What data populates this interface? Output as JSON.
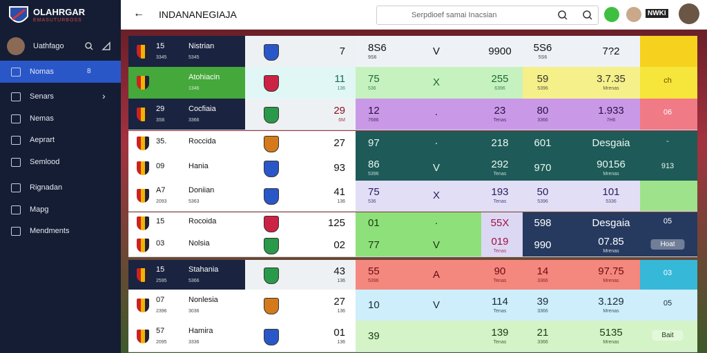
{
  "sidebar": {
    "brand": "OLAHRGAR",
    "brand_sub": "EMASUTURBOSS",
    "user": "Uathfago",
    "badge": "8",
    "items": [
      "Nomas",
      "Senars",
      "Nemas",
      "Aeprart",
      "Semlood",
      "Rignadan",
      "Mapg",
      "Mendments"
    ]
  },
  "header": {
    "title": "INDANANEGIAJA",
    "search_placeholder": "Serpdioef samai Inacsian",
    "logo": "NWKI"
  },
  "rows": [
    {
      "lines": [
        {
          "num": "15",
          "num_sub": "3345",
          "name": "Nistrian",
          "name_sub": "5345",
          "score": "7",
          "a": "8S6",
          "a_sub": "9S6",
          "arrow": "V",
          "b": "9900",
          "c": "5S6",
          "c_sub": "5S6",
          "d": "7?2"
        }
      ]
    },
    {
      "lines": [
        {
          "name": "Atohiacin",
          "name_sub": "1346",
          "score": "11",
          "score_sub": "136",
          "a": "75",
          "a_sub": "536",
          "arrow": "X",
          "b": "255",
          "b_sub": "6396",
          "c": "59",
          "c_sub": "5396",
          "d": "3.7.35",
          "d_sub": "Mrenas",
          "e": "ch"
        }
      ]
    },
    {
      "lines": [
        {
          "num": "29",
          "num_sub": "3S6",
          "name": "Cocfiaia",
          "name_sub": "3366",
          "score": "29",
          "score_sub": "6M",
          "a": "12",
          "a_sub": "7686",
          "arrow": "·",
          "b": "23",
          "b_sub": "Tenas",
          "c": "80",
          "c_sub": "3366",
          "d": "1.933",
          "d_sub": "7H6",
          "e": "06"
        }
      ]
    },
    {
      "lines": [
        {
          "num": "35.",
          "name": "Roccida",
          "score": "27",
          "a": "97",
          "arrow": "·",
          "b": "218",
          "c": "601",
          "d": "Desgaia",
          "e": "-"
        },
        {
          "num": "09",
          "name": "Hania",
          "score": "93",
          "a": "86",
          "a_sub": "5396",
          "arrow": "V",
          "b": "292",
          "b_sub": "Tenas",
          "c": "970",
          "d": "90156",
          "d_sub": "Mrenas",
          "e": "913"
        }
      ]
    },
    {
      "lines": [
        {
          "num": "A7",
          "num_sub": "2093",
          "name": "Doniian",
          "name_sub": "5363",
          "score": "41",
          "score_sub": "136",
          "a": "75",
          "a_sub": "536",
          "arrow": "X",
          "b": "193",
          "b_sub": "Tenas",
          "c": "50",
          "c_sub": "5396",
          "d": "101",
          "d_sub": "5336"
        }
      ]
    },
    {
      "lines": [
        {
          "num": "15",
          "name": "Rocoida",
          "score": "125",
          "a": "01",
          "arrow": "·",
          "b": "55X",
          "c": "598",
          "d": "Desgaia",
          "e": "05"
        },
        {
          "num": "03",
          "name": "Nolsia",
          "score": "02",
          "a": "77",
          "arrow": "V",
          "b": "019",
          "b_sub": "Tenas",
          "c": "990",
          "d": "07.85",
          "d_sub": "Mrenas",
          "e": "Hoat"
        }
      ]
    },
    {
      "lines": [
        {
          "num": "15",
          "num_sub": "2595",
          "name": "Stahania",
          "name_sub": "5366",
          "score": "43",
          "score_sub": "136",
          "a": "55",
          "a_sub": "5396",
          "arrow": "A",
          "b": "90",
          "b_sub": "Tenas",
          "c": "14",
          "c_sub": "3366",
          "d": "97.75",
          "d_sub": "Mrenas",
          "e": "03"
        }
      ]
    },
    {
      "lines": [
        {
          "num": "07",
          "num_sub": "2396",
          "name": "Nonlesia",
          "name_sub": "3036",
          "score": "27",
          "score_sub": "136",
          "a": "10",
          "arrow": "V",
          "b": "114",
          "b_sub": "Tenas",
          "c": "39",
          "c_sub": "3366",
          "d": "3.129",
          "d_sub": "Mrenas",
          "e": "05"
        }
      ]
    },
    {
      "lines": [
        {
          "num": "57",
          "num_sub": "2095",
          "name": "Hamira",
          "name_sub": "3336",
          "score": "01",
          "score_sub": "136",
          "a": "39",
          "b": "139",
          "b_sub": "Tenas",
          "c": "21",
          "c_sub": "3366",
          "d": "5135",
          "d_sub": "Mrenas",
          "e": "Bait"
        }
      ]
    }
  ]
}
